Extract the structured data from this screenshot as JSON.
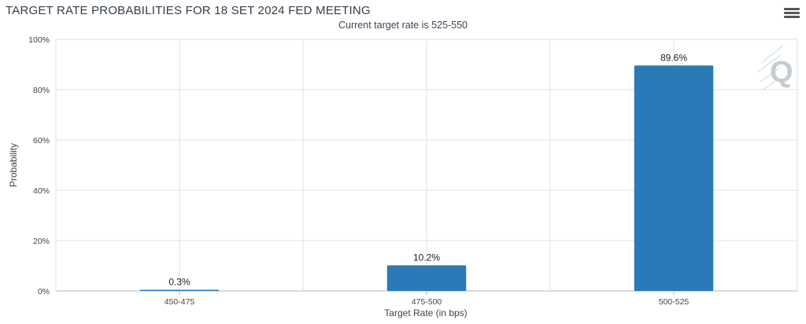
{
  "header": {
    "title": "TARGET RATE PROBABILITIES FOR 18 SET 2024 FED MEETING",
    "subtitle": "Current target rate is 525-550",
    "menu_icon": "hamburger-menu-icon",
    "watermark_icon": "quikstrike-q-logo"
  },
  "colors": {
    "bar": "#2a7ab8",
    "grid": "#e0e0e0",
    "axis": "#b0b8c4"
  },
  "chart_data": {
    "type": "bar",
    "title": "TARGET RATE PROBABILITIES FOR 18 SET 2024 FED MEETING",
    "subtitle": "Current target rate is 525-550",
    "categories": [
      "450-475",
      "475-500",
      "500-525"
    ],
    "values": [
      0.3,
      10.2,
      89.6
    ],
    "data_labels": [
      "0.3%",
      "10.2%",
      "89.6%"
    ],
    "xlabel": "Target Rate (in bps)",
    "ylabel": "Probability",
    "ylim": [
      0,
      100
    ],
    "yticks": [
      0,
      20,
      40,
      60,
      80,
      100
    ],
    "ytick_labels": [
      "0%",
      "20%",
      "40%",
      "60%",
      "80%",
      "100%"
    ],
    "grid": true,
    "legend": false
  }
}
